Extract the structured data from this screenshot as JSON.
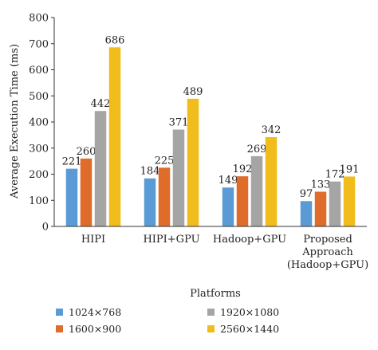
{
  "chart_data": {
    "type": "bar",
    "categories": [
      "HIPI",
      "HIPI+GPU",
      "Hadoop+GPU",
      "Proposed\nApproach\n(Hadoop+GPU)"
    ],
    "series": [
      {
        "name": "1024×768",
        "color": "#5b9bd5",
        "values": [
          221,
          184,
          149,
          97
        ]
      },
      {
        "name": "1600×900",
        "color": "#e06c2c",
        "values": [
          260,
          225,
          192,
          133
        ]
      },
      {
        "name": "1920×1080",
        "color": "#a5a5a5",
        "values": [
          442,
          371,
          269,
          172
        ]
      },
      {
        "name": "2560×1440",
        "color": "#f0bd1c",
        "values": [
          686,
          489,
          342,
          191
        ]
      }
    ],
    "xlabel": "Platforms",
    "ylabel": "Average Execution Time (ms)",
    "ylim": [
      0,
      800
    ],
    "yticks": [
      0,
      100,
      200,
      300,
      400,
      500,
      600,
      700,
      800
    ],
    "grid": false,
    "legend_position": "bottom"
  }
}
